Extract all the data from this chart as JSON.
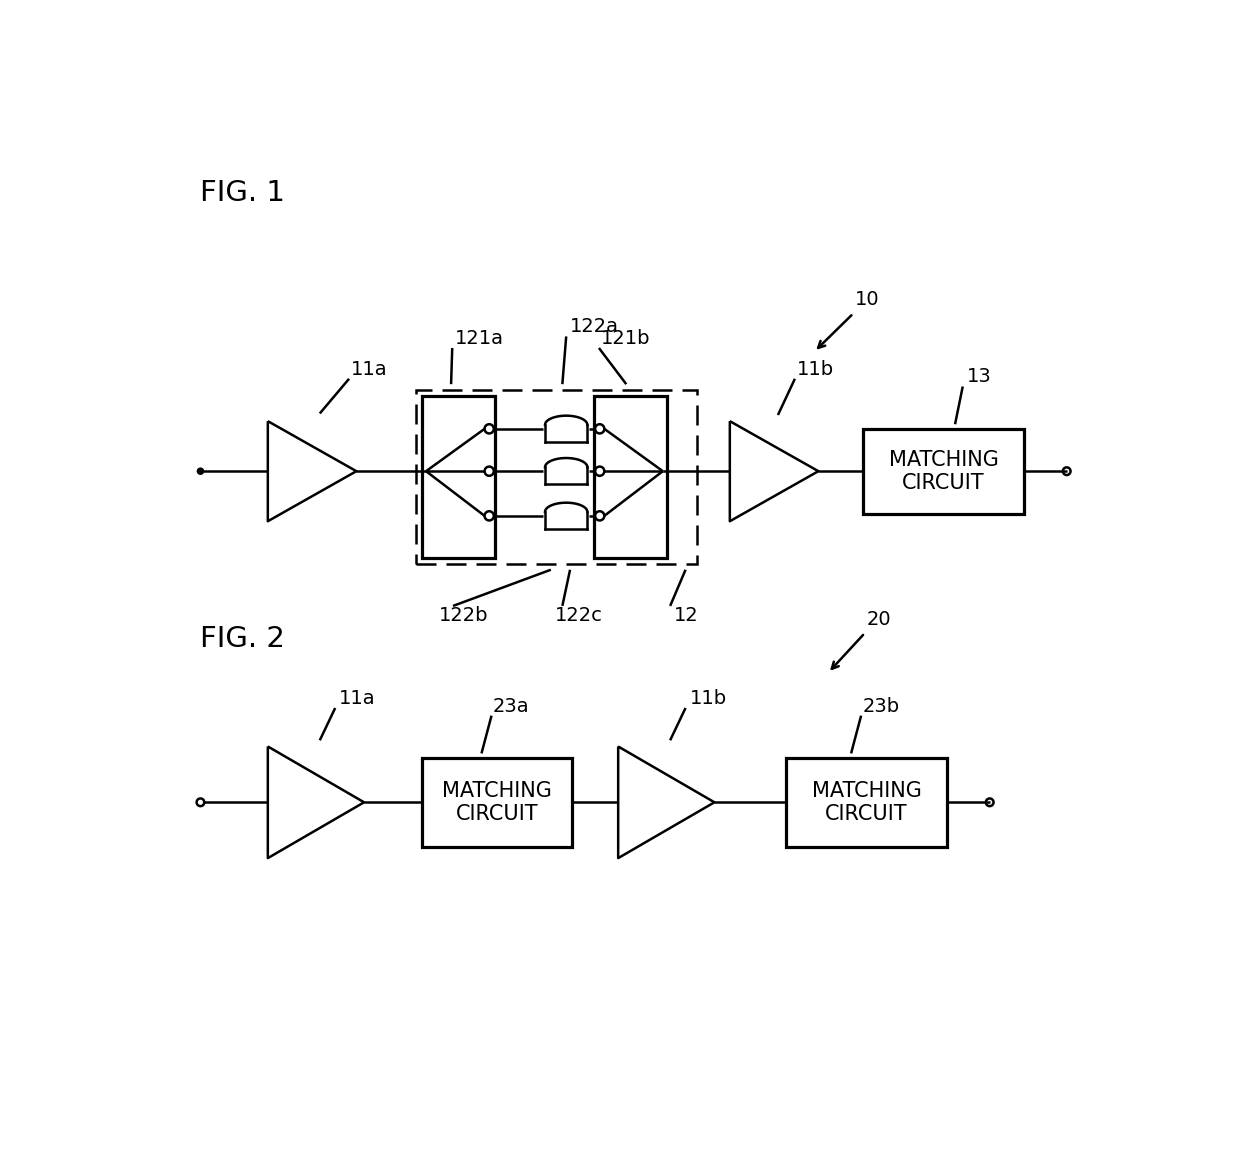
{
  "fig1_label": "FIG. 1",
  "fig2_label": "FIG. 2",
  "label_10": "10",
  "label_11a_fig1": "11a",
  "label_11b_fig1": "11b",
  "label_12": "12",
  "label_13": "13",
  "label_121a": "121a",
  "label_121b": "121b",
  "label_122a": "122a",
  "label_122b": "122b",
  "label_122c": "122c",
  "label_11a_fig2": "11a",
  "label_11b_fig2": "11b",
  "label_20": "20",
  "label_23a": "23a",
  "label_23b": "23b",
  "matching_circuit_text": "MATCHING\nCIRCUIT",
  "bg_color": "#ffffff",
  "line_color": "#000000",
  "lw": 1.8
}
